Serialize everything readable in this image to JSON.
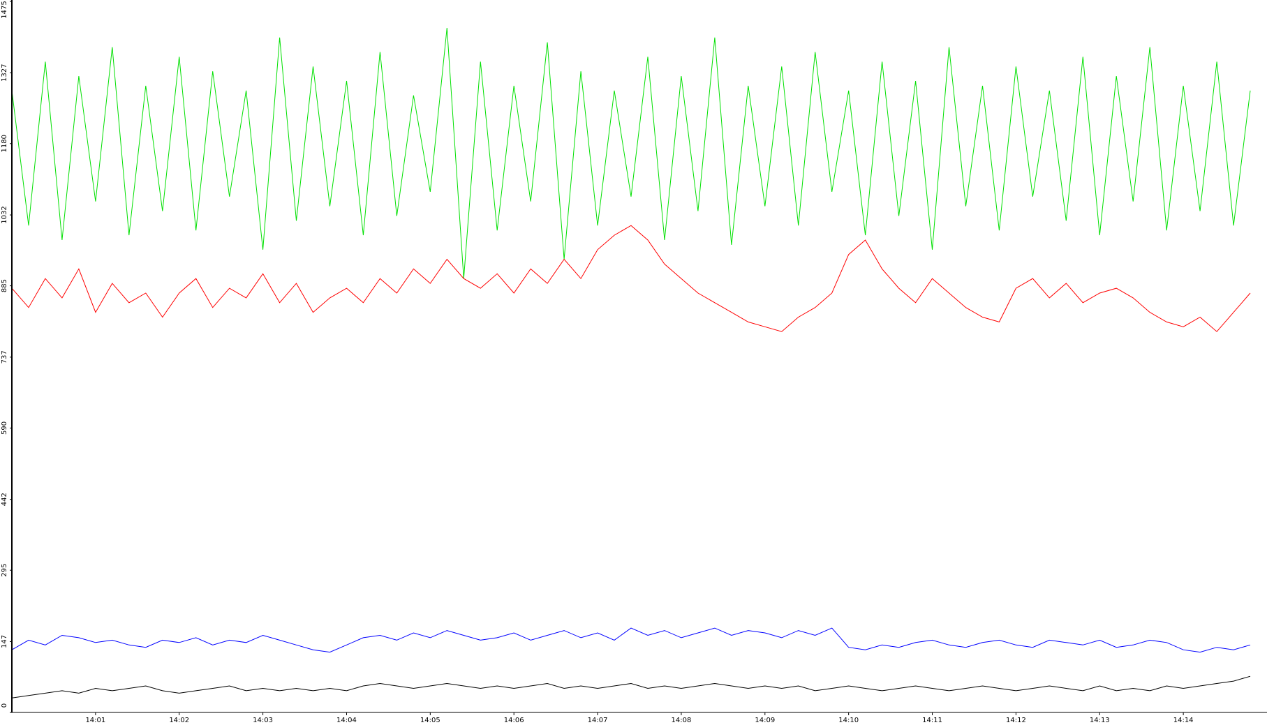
{
  "chart_data": {
    "type": "line",
    "xlim": [
      840,
      855
    ],
    "ylim": [
      0,
      1475
    ],
    "xticks": [
      {
        "value": 841,
        "label": "14:01"
      },
      {
        "value": 842,
        "label": "14:02"
      },
      {
        "value": 843,
        "label": "14:03"
      },
      {
        "value": 844,
        "label": "14:04"
      },
      {
        "value": 845,
        "label": "14:05"
      },
      {
        "value": 846,
        "label": "14:06"
      },
      {
        "value": 847,
        "label": "14:07"
      },
      {
        "value": 848,
        "label": "14:08"
      },
      {
        "value": 849,
        "label": "14:09"
      },
      {
        "value": 850,
        "label": "14:10"
      },
      {
        "value": 851,
        "label": "14:11"
      },
      {
        "value": 852,
        "label": "14:12"
      },
      {
        "value": 853,
        "label": "14:13"
      },
      {
        "value": 854,
        "label": "14:14"
      }
    ],
    "yticks": [
      0,
      147,
      295,
      442,
      590,
      737,
      885,
      1032,
      1180,
      1327,
      1475
    ],
    "x": [
      840,
      840.2,
      840.4,
      840.6,
      840.8,
      841,
      841.2,
      841.4,
      841.6,
      841.8,
      842,
      842.2,
      842.4,
      842.6,
      842.8,
      843,
      843.2,
      843.4,
      843.6,
      843.8,
      844,
      844.2,
      844.4,
      844.6,
      844.8,
      845,
      845.2,
      845.4,
      845.6,
      845.8,
      846,
      846.2,
      846.4,
      846.6,
      846.8,
      847,
      847.2,
      847.4,
      847.6,
      847.8,
      848,
      848.2,
      848.4,
      848.6,
      848.8,
      849,
      849.2,
      849.4,
      849.6,
      849.8,
      850,
      850.2,
      850.4,
      850.6,
      850.8,
      851,
      851.2,
      851.4,
      851.6,
      851.8,
      852,
      852.2,
      852.4,
      852.6,
      852.8,
      853,
      853.2,
      853.4,
      853.6,
      853.8,
      854,
      854.2,
      854.4,
      854.6,
      854.8
    ],
    "series": [
      {
        "color": "#00e000",
        "values": [
          1290,
          1010,
          1350,
          980,
          1320,
          1060,
          1380,
          990,
          1300,
          1040,
          1360,
          1000,
          1330,
          1070,
          1290,
          960,
          1400,
          1020,
          1340,
          1050,
          1310,
          990,
          1370,
          1030,
          1280,
          1080,
          1420,
          900,
          1350,
          1000,
          1300,
          1060,
          1390,
          940,
          1330,
          1010,
          1290,
          1070,
          1360,
          980,
          1320,
          1040,
          1400,
          970,
          1300,
          1050,
          1340,
          1010,
          1370,
          1080,
          1290,
          990,
          1350,
          1030,
          1310,
          960,
          1380,
          1050,
          1300,
          1000,
          1340,
          1070,
          1290,
          1020,
          1360,
          990,
          1320,
          1060,
          1380,
          1000,
          1300,
          1040,
          1350,
          1010,
          1290
        ]
      },
      {
        "color": "#ff0000",
        "values": [
          880,
          840,
          900,
          860,
          920,
          830,
          890,
          850,
          870,
          820,
          870,
          900,
          840,
          880,
          860,
          910,
          850,
          890,
          830,
          860,
          880,
          850,
          900,
          870,
          920,
          890,
          940,
          900,
          880,
          910,
          870,
          920,
          890,
          940,
          900,
          960,
          990,
          1010,
          980,
          930,
          900,
          870,
          850,
          830,
          810,
          800,
          790,
          820,
          840,
          870,
          950,
          980,
          920,
          880,
          850,
          900,
          870,
          840,
          820,
          810,
          880,
          900,
          860,
          890,
          850,
          870,
          880,
          860,
          830,
          810,
          800,
          820,
          790,
          830,
          870
        ]
      },
      {
        "color": "#0000ff",
        "values": [
          130,
          150,
          140,
          160,
          155,
          145,
          150,
          140,
          135,
          150,
          145,
          155,
          140,
          150,
          145,
          160,
          150,
          140,
          130,
          125,
          140,
          155,
          160,
          150,
          165,
          155,
          170,
          160,
          150,
          155,
          165,
          150,
          160,
          170,
          155,
          165,
          150,
          175,
          160,
          170,
          155,
          165,
          175,
          160,
          170,
          165,
          155,
          170,
          160,
          175,
          135,
          130,
          140,
          135,
          145,
          150,
          140,
          135,
          145,
          150,
          140,
          135,
          150,
          145,
          140,
          150,
          135,
          140,
          150,
          145,
          130,
          125,
          135,
          130,
          140
        ]
      },
      {
        "color": "#000000",
        "values": [
          30,
          35,
          40,
          45,
          40,
          50,
          45,
          50,
          55,
          45,
          40,
          45,
          50,
          55,
          45,
          50,
          45,
          50,
          45,
          50,
          45,
          55,
          60,
          55,
          50,
          55,
          60,
          55,
          50,
          55,
          50,
          55,
          60,
          50,
          55,
          50,
          55,
          60,
          50,
          55,
          50,
          55,
          60,
          55,
          50,
          55,
          50,
          55,
          45,
          50,
          55,
          50,
          45,
          50,
          55,
          50,
          45,
          50,
          55,
          50,
          45,
          50,
          55,
          50,
          45,
          55,
          45,
          50,
          45,
          55,
          50,
          55,
          60,
          65,
          75
        ]
      }
    ]
  }
}
